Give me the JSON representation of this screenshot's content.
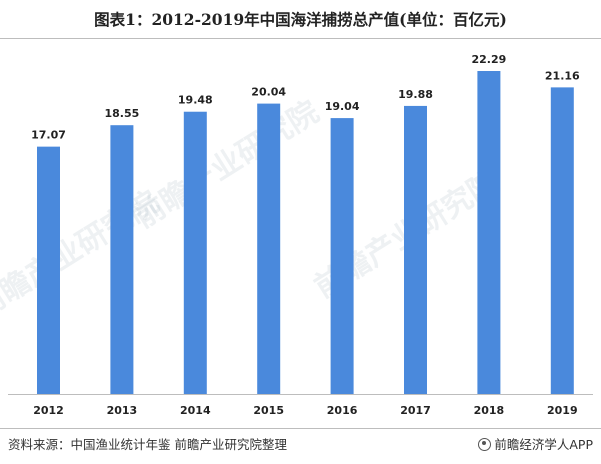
{
  "title": "图表1：2012-2019年中国海洋捕捞总产值(单位：百亿元)",
  "footer": {
    "source": "资料来源：中国渔业统计年鉴 前瞻产业研究院整理",
    "brand": "前瞻经济学人APP"
  },
  "watermark_text": "前瞻产业研究院",
  "colors": {
    "bar": "#4a89dc",
    "text": "#222222",
    "axis": "#bdbdbd"
  },
  "chart_data": {
    "type": "bar",
    "title": "图表1：2012-2019年中国海洋捕捞总产值(单位：百亿元)",
    "xlabel": "",
    "ylabel": "",
    "categories": [
      "2012",
      "2013",
      "2014",
      "2015",
      "2016",
      "2017",
      "2018",
      "2019"
    ],
    "values": [
      17.07,
      18.55,
      19.48,
      20.04,
      19.04,
      19.88,
      22.29,
      21.16
    ],
    "value_labels": [
      "17.07",
      "18.55",
      "19.48",
      "20.04",
      "19.04",
      "19.88",
      "22.29",
      "21.16"
    ],
    "ylim": [
      0,
      22.29
    ],
    "grid": false,
    "legend": "none"
  }
}
